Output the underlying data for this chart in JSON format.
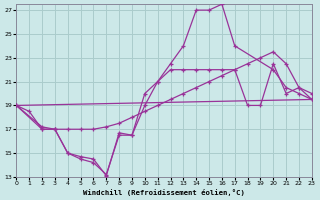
{
  "xlabel": "Windchill (Refroidissement éolien,°C)",
  "bg_color": "#cce8e8",
  "grid_color": "#aacccc",
  "line_color": "#993399",
  "xlim": [
    0,
    23
  ],
  "ylim": [
    13,
    27.5
  ],
  "xticks": [
    0,
    1,
    2,
    3,
    4,
    5,
    6,
    7,
    8,
    9,
    10,
    11,
    12,
    13,
    14,
    15,
    16,
    17,
    18,
    19,
    20,
    21,
    22,
    23
  ],
  "yticks": [
    13,
    15,
    17,
    19,
    21,
    23,
    25,
    27
  ],
  "line1_x": [
    0,
    1,
    2,
    3,
    4,
    5,
    6,
    7,
    8,
    9,
    10,
    11,
    12,
    13,
    14,
    15,
    16,
    17,
    20,
    21,
    22,
    23
  ],
  "line1_y": [
    19,
    18.5,
    17,
    17,
    15,
    14.7,
    14.5,
    13.1,
    16.7,
    16.5,
    19,
    21,
    22.5,
    24,
    27,
    27,
    27.5,
    24,
    22,
    20.5,
    20,
    19.5
  ],
  "line2_x": [
    0,
    2,
    3,
    4,
    5,
    6,
    7,
    8,
    9,
    10,
    11,
    12,
    13,
    14,
    15,
    16,
    17,
    18,
    19,
    20,
    21,
    22,
    23
  ],
  "line2_y": [
    19,
    17.2,
    17,
    17,
    17,
    17,
    17.2,
    17.5,
    18,
    18.5,
    19,
    19.5,
    20,
    20.5,
    21,
    21.5,
    22,
    22.5,
    23,
    23.5,
    22.5,
    20.5,
    19.5
  ],
  "line3_x": [
    0,
    2,
    3,
    4,
    5,
    6,
    7,
    8,
    9,
    10,
    11,
    12,
    13,
    14,
    15,
    16,
    17,
    18,
    19,
    20,
    21,
    22,
    23
  ],
  "line3_y": [
    19,
    17,
    17,
    15,
    14.5,
    14.2,
    13.2,
    16.5,
    16.5,
    20,
    21,
    22,
    22,
    22,
    22,
    22,
    22,
    19,
    19,
    22.5,
    20,
    20.5,
    20
  ],
  "line4_x": [
    0,
    23
  ],
  "line4_y": [
    19,
    19.5
  ]
}
